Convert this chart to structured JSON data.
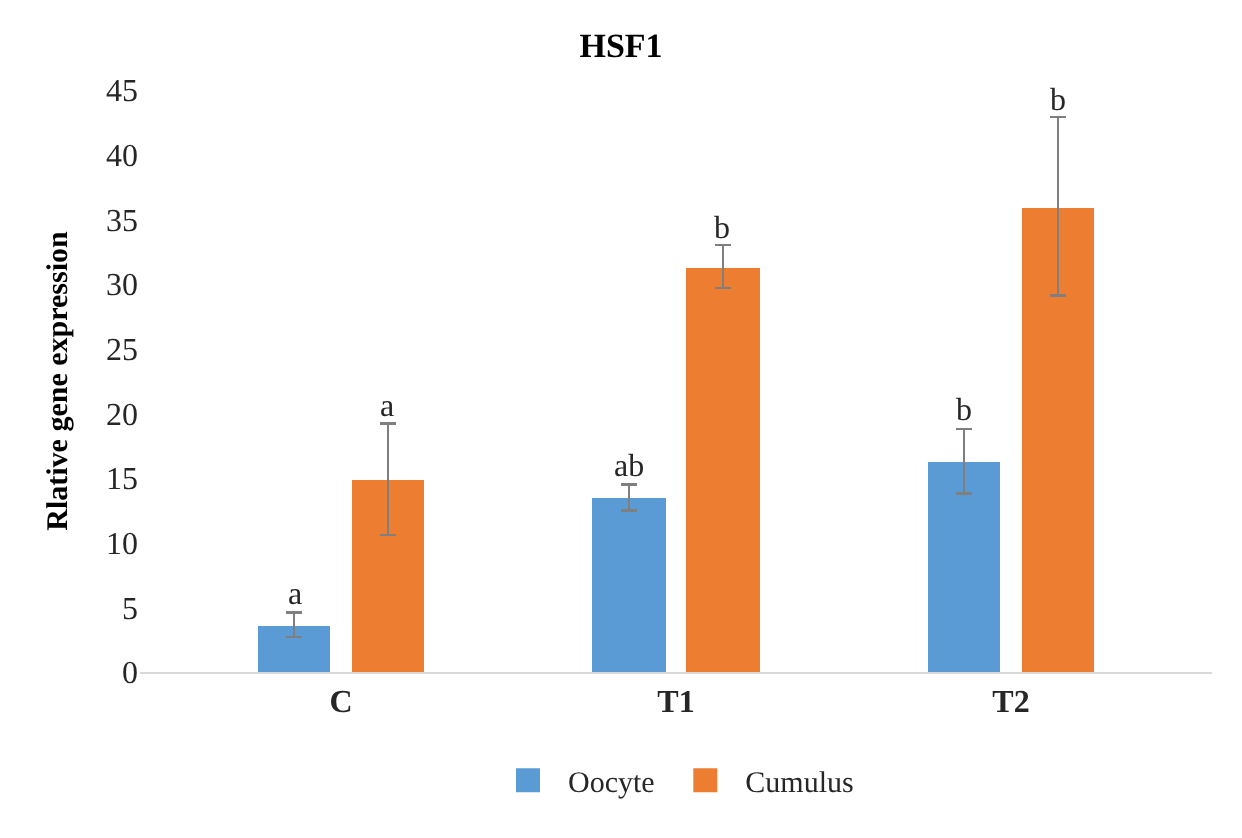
{
  "chart_data": {
    "type": "bar",
    "title": "HSF1",
    "ylabel": "Rlative gene expression",
    "categories": [
      "C",
      "T1",
      "T2"
    ],
    "series": [
      {
        "name": "Oocyte",
        "color": "#5b9bd5",
        "values": [
          3.6,
          13.5,
          16.2
        ],
        "errors": [
          [
            2.7,
            4.6
          ],
          [
            12.5,
            14.5
          ],
          [
            13.8,
            18.8
          ]
        ],
        "value_labels": [
          "a",
          "ab",
          "b"
        ]
      },
      {
        "name": "Cumulus",
        "color": "#ed7d31",
        "values": [
          14.9,
          31.3,
          35.9
        ],
        "errors": [
          [
            10.6,
            19.2
          ],
          [
            29.7,
            33.0
          ],
          [
            29.1,
            42.9
          ]
        ],
        "value_labels": [
          "a",
          "b",
          "b"
        ]
      }
    ],
    "ylim": [
      0,
      45
    ],
    "yticks": [
      0,
      5,
      10,
      15,
      20,
      25,
      30,
      35,
      40,
      45
    ],
    "grid": false,
    "legend": "bottom"
  }
}
